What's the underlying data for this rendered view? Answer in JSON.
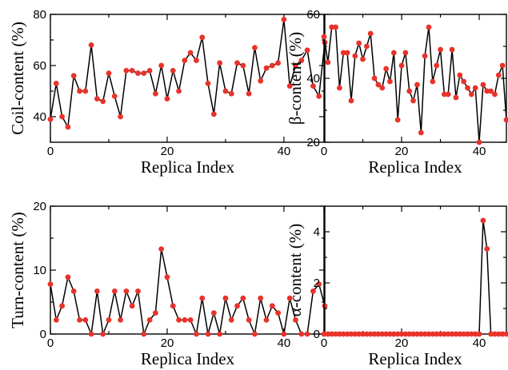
{
  "chart_data": [
    {
      "type": "line",
      "xlabel": "Replica Index",
      "ylabel": "Coil-content (%)",
      "xlim": [
        0,
        47
      ],
      "ylim": [
        30,
        80
      ],
      "xticks": [
        "0",
        "20",
        "40"
      ],
      "yticks": [
        "40",
        "60",
        "80"
      ],
      "xtick_values": [
        0,
        20,
        40
      ],
      "ytick_values": [
        40,
        60,
        80
      ],
      "marker_color": "#e8332a",
      "line_color": "#000000",
      "x": [
        0,
        1,
        2,
        3,
        4,
        5,
        6,
        7,
        8,
        9,
        10,
        11,
        12,
        13,
        14,
        15,
        16,
        17,
        18,
        19,
        20,
        21,
        22,
        23,
        24,
        25,
        26,
        27,
        28,
        29,
        30,
        31,
        32,
        33,
        34,
        35,
        36,
        37,
        38,
        39,
        40,
        41,
        42,
        43,
        44,
        45,
        46,
        47
      ],
      "y": [
        39,
        53,
        40,
        36,
        56,
        50,
        50,
        68,
        47,
        46,
        57,
        48,
        40,
        58,
        58,
        57,
        57,
        58,
        49,
        60,
        47,
        58,
        50,
        62,
        65,
        62,
        71,
        53,
        41,
        61,
        50,
        49,
        61,
        60,
        49,
        67,
        54,
        59,
        60,
        61,
        78,
        52,
        60,
        62,
        66,
        52,
        48,
        69
      ]
    },
    {
      "type": "line",
      "xlabel": "Replica Index",
      "ylabel": "β-content (%)",
      "xlim": [
        0,
        47
      ],
      "ylim": [
        20,
        60
      ],
      "xticks": [
        "0",
        "20",
        "40"
      ],
      "yticks": [
        "20",
        "40",
        "60"
      ],
      "xtick_values": [
        0,
        20,
        40
      ],
      "ytick_values": [
        20,
        40,
        60
      ],
      "marker_color": "#e8332a",
      "line_color": "#000000",
      "x": [
        0,
        1,
        2,
        3,
        4,
        5,
        6,
        7,
        8,
        9,
        10,
        11,
        12,
        13,
        14,
        15,
        16,
        17,
        18,
        19,
        20,
        21,
        22,
        23,
        24,
        25,
        26,
        27,
        28,
        29,
        30,
        31,
        32,
        33,
        34,
        35,
        36,
        37,
        38,
        39,
        40,
        41,
        42,
        43,
        44,
        45,
        46,
        47
      ],
      "y": [
        53,
        45,
        56,
        56,
        37,
        48,
        48,
        33,
        47,
        51,
        46,
        50,
        54,
        40,
        38,
        37,
        43,
        39,
        48,
        27,
        44,
        48,
        36,
        33,
        38,
        23,
        47,
        56,
        39,
        44,
        49,
        35,
        35,
        49,
        34,
        41,
        39,
        37,
        35,
        37,
        20,
        38,
        36,
        36,
        35,
        41,
        44,
        27
      ]
    },
    {
      "type": "line",
      "xlabel": "Replica Index",
      "ylabel": "Turn-content (%)",
      "xlim": [
        0,
        47
      ],
      "ylim": [
        0,
        20
      ],
      "xticks": [
        "0",
        "20",
        "40"
      ],
      "yticks": [
        "0",
        "10",
        "20"
      ],
      "xtick_values": [
        0,
        20,
        40
      ],
      "ytick_values": [
        0,
        10,
        20
      ],
      "marker_color": "#e8332a",
      "line_color": "#000000",
      "x": [
        0,
        1,
        2,
        3,
        4,
        5,
        6,
        7,
        8,
        9,
        10,
        11,
        12,
        13,
        14,
        15,
        16,
        17,
        18,
        19,
        20,
        21,
        22,
        23,
        24,
        25,
        26,
        27,
        28,
        29,
        30,
        31,
        32,
        33,
        34,
        35,
        36,
        37,
        38,
        39,
        40,
        41,
        42,
        43,
        44,
        45,
        46,
        47
      ],
      "y": [
        7.8,
        2.2,
        4.4,
        8.9,
        6.7,
        2.2,
        2.2,
        0,
        6.7,
        0,
        2.2,
        6.7,
        2.2,
        6.7,
        4.4,
        6.7,
        0,
        2.2,
        3.3,
        13.3,
        8.9,
        4.4,
        2.2,
        2.2,
        2.2,
        0,
        5.6,
        0,
        3.3,
        0,
        5.6,
        2.2,
        4.4,
        5.6,
        2.2,
        0,
        5.6,
        2.2,
        4.4,
        3.3,
        0,
        5.6,
        2.2,
        0,
        0,
        6.7,
        7.8,
        4.4
      ]
    },
    {
      "type": "line",
      "xlabel": "Replica Index",
      "ylabel": "α-content (%)",
      "xlim": [
        0,
        47
      ],
      "ylim": [
        0,
        5
      ],
      "xticks": [
        "0",
        "20",
        "40"
      ],
      "yticks": [
        "0",
        "2",
        "4"
      ],
      "xtick_values": [
        0,
        20,
        40
      ],
      "ytick_values": [
        0,
        2,
        4
      ],
      "marker_color": "#e8332a",
      "line_color": "#000000",
      "x": [
        0,
        1,
        2,
        3,
        4,
        5,
        6,
        7,
        8,
        9,
        10,
        11,
        12,
        13,
        14,
        15,
        16,
        17,
        18,
        19,
        20,
        21,
        22,
        23,
        24,
        25,
        26,
        27,
        28,
        29,
        30,
        31,
        32,
        33,
        34,
        35,
        36,
        37,
        38,
        39,
        40,
        41,
        42,
        43,
        44,
        45,
        46,
        47
      ],
      "y": [
        0,
        0,
        0,
        0,
        0,
        0,
        0,
        0,
        0,
        0,
        0,
        0,
        0,
        0,
        0,
        0,
        0,
        0,
        0,
        0,
        0,
        0,
        0,
        0,
        0,
        0,
        0,
        0,
        0,
        0,
        0,
        0,
        0,
        0,
        0,
        0,
        0,
        0,
        0,
        0,
        0,
        4.44,
        3.33,
        0,
        0,
        0,
        0,
        0
      ]
    }
  ]
}
